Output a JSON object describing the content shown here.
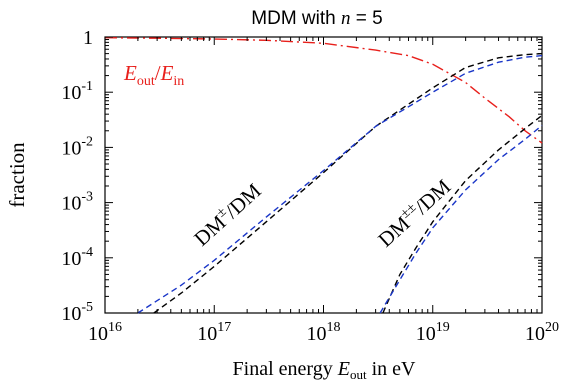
{
  "chart_data": {
    "type": "line",
    "title": "MDM with n = 5",
    "title_text": "MDM with ",
    "title_var": "n",
    "title_suffix": " = 5",
    "xlabel": "Final energy E_out in eV",
    "xlabel_text": "Final energy ",
    "xlabel_var": "E",
    "xlabel_sub": "out",
    "xlabel_suffix": "  in eV",
    "ylabel": "fraction",
    "x_scale": "log",
    "y_scale": "log",
    "xlim": [
      1e+16,
      1e+20
    ],
    "ylim": [
      1e-05,
      1
    ],
    "grid": false,
    "x_ticks": [
      {
        "base": "10",
        "exp": "16"
      },
      {
        "base": "10",
        "exp": "17"
      },
      {
        "base": "10",
        "exp": "18"
      },
      {
        "base": "10",
        "exp": "19"
      },
      {
        "base": "10",
        "exp": "20"
      }
    ],
    "y_ticks": [
      {
        "base": "1",
        "exp": ""
      },
      {
        "base": "10",
        "exp": "-1"
      },
      {
        "base": "10",
        "exp": "-2"
      },
      {
        "base": "10",
        "exp": "-3"
      },
      {
        "base": "10",
        "exp": "-4"
      },
      {
        "base": "10",
        "exp": "-5"
      }
    ],
    "annotations": {
      "ratio": {
        "text": "E_out/E_in",
        "num_var": "E",
        "num_sub": "out",
        "slash": "/",
        "den_var": "E",
        "den_sub": "in",
        "color": "#e8201c"
      },
      "single": {
        "text": "DM±/DM",
        "base": "DM",
        "sup": "±",
        "suffix": "/DM"
      },
      "double": {
        "text": "DM±±/DM",
        "base": "DM",
        "sup": "±±",
        "suffix": "/DM"
      }
    },
    "series": [
      {
        "label_ref": "ratio",
        "style": "dashdot",
        "color": "#e8201c",
        "x": [
          1e+16,
          3e+16,
          1e+17,
          3e+17,
          1e+18,
          3e+18,
          6e+18,
          1e+19,
          2e+19,
          3e+19,
          5e+19,
          7e+19,
          1e+20
        ],
        "y": [
          0.97,
          0.95,
          0.92,
          0.87,
          0.77,
          0.58,
          0.46,
          0.32,
          0.15,
          0.078,
          0.036,
          0.02,
          0.012
        ]
      },
      {
        "label_ref": "single",
        "style": "dashed",
        "color": "#000000",
        "x": [
          2.8e+16,
          5e+16,
          1e+17,
          3e+17,
          1e+18,
          3e+18,
          1e+19,
          2e+19,
          4e+19,
          7e+19,
          1e+20
        ],
        "y": [
          1e-05,
          2.3e-05,
          7e-05,
          0.00045,
          0.0035,
          0.024,
          0.12,
          0.28,
          0.42,
          0.48,
          0.5
        ]
      },
      {
        "label_ref": "single",
        "style": "dashed",
        "color": "#1a36c8",
        "x": [
          2e+16,
          5e+16,
          1e+17,
          3e+17,
          1e+18,
          3e+18,
          1e+19,
          2e+19,
          4e+19,
          7e+19,
          1e+20
        ],
        "y": [
          1e-05,
          3.2e-05,
          9e-05,
          0.00055,
          0.0038,
          0.024,
          0.1,
          0.22,
          0.35,
          0.43,
          0.46
        ]
      },
      {
        "label_ref": "double",
        "style": "dashed",
        "color": "#000000",
        "x": [
          3.5e+18,
          5e+18,
          7e+18,
          1e+19,
          2e+19,
          4e+19,
          7e+19,
          1e+20
        ],
        "y": [
          1e-05,
          5e-05,
          0.00015,
          0.00045,
          0.0025,
          0.009,
          0.022,
          0.038
        ]
      },
      {
        "label_ref": "double",
        "style": "dashed",
        "color": "#1a36c8",
        "x": [
          3.3e+18,
          5e+18,
          7e+18,
          1e+19,
          2e+19,
          4e+19,
          7e+19,
          1e+20
        ],
        "y": [
          1e-05,
          4e-05,
          0.00012,
          0.00035,
          0.0017,
          0.006,
          0.014,
          0.025
        ]
      }
    ]
  }
}
